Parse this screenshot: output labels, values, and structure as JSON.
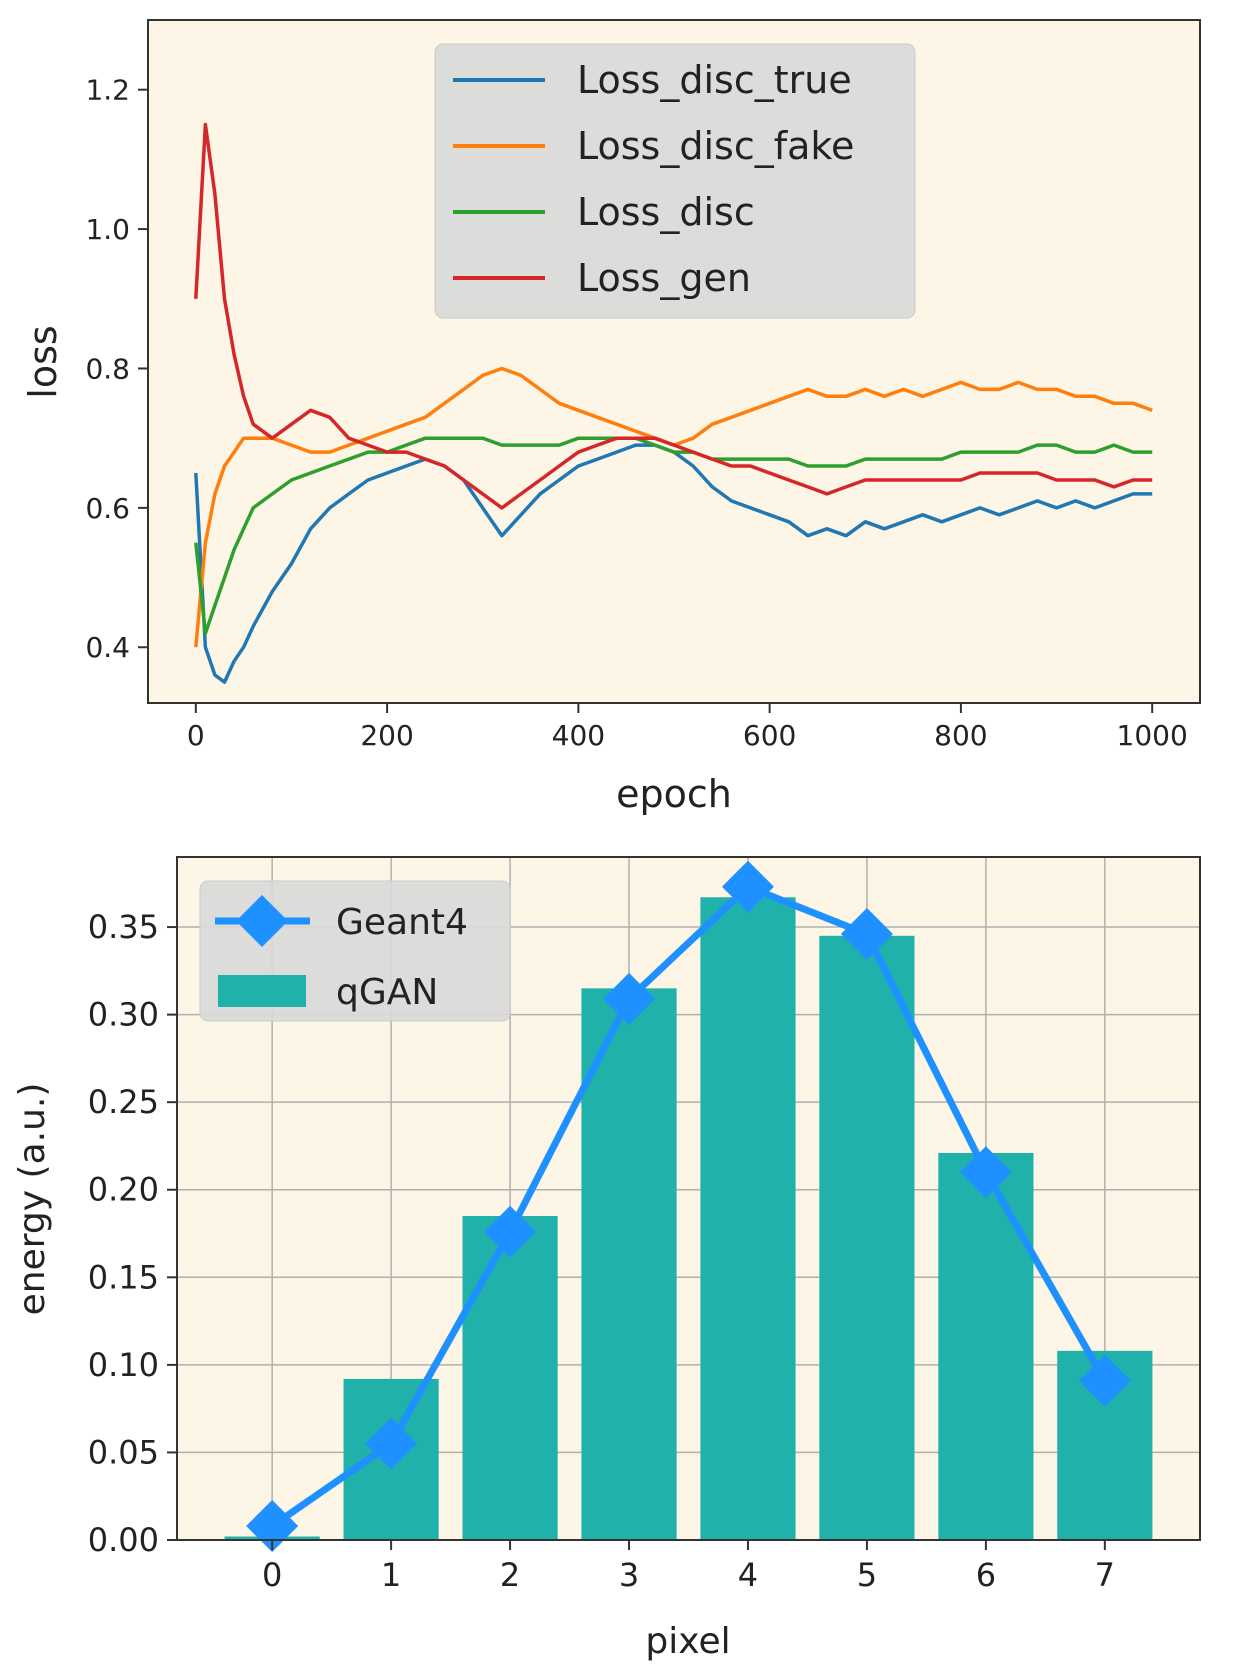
{
  "chart_data": [
    {
      "type": "line",
      "title": "",
      "xlabel": "epoch",
      "ylabel": "loss",
      "xlim": [
        -50,
        1050
      ],
      "ylim": [
        0.32,
        1.3
      ],
      "xticks": [
        0,
        200,
        400,
        600,
        800,
        1000
      ],
      "yticks": [
        0.4,
        0.6,
        0.8,
        1.0,
        1.2
      ],
      "xtick_labels": [
        "0",
        "200",
        "400",
        "600",
        "800",
        "1000"
      ],
      "ytick_labels": [
        "0.4",
        "0.6",
        "0.8",
        "1.0",
        "1.2"
      ],
      "grid": false,
      "legend_position": "upper-center",
      "background": "#fdf5e6",
      "series": [
        {
          "name": "Loss_disc_true",
          "color": "#1f77b4",
          "x": [
            0,
            10,
            20,
            30,
            40,
            50,
            60,
            80,
            100,
            120,
            140,
            160,
            180,
            200,
            220,
            240,
            260,
            280,
            300,
            320,
            340,
            360,
            380,
            400,
            420,
            440,
            460,
            480,
            500,
            520,
            540,
            560,
            580,
            600,
            620,
            640,
            660,
            680,
            700,
            720,
            740,
            760,
            780,
            800,
            820,
            840,
            860,
            880,
            900,
            920,
            940,
            960,
            980,
            1000
          ],
          "values": [
            0.65,
            0.4,
            0.36,
            0.35,
            0.38,
            0.4,
            0.43,
            0.48,
            0.52,
            0.57,
            0.6,
            0.62,
            0.64,
            0.65,
            0.66,
            0.67,
            0.66,
            0.64,
            0.6,
            0.56,
            0.59,
            0.62,
            0.64,
            0.66,
            0.67,
            0.68,
            0.69,
            0.69,
            0.68,
            0.66,
            0.63,
            0.61,
            0.6,
            0.59,
            0.58,
            0.56,
            0.57,
            0.56,
            0.58,
            0.57,
            0.58,
            0.59,
            0.58,
            0.59,
            0.6,
            0.59,
            0.6,
            0.61,
            0.6,
            0.61,
            0.6,
            0.61,
            0.62,
            0.62
          ]
        },
        {
          "name": "Loss_disc_fake",
          "color": "#ff7f0e",
          "x": [
            0,
            10,
            20,
            30,
            40,
            50,
            60,
            80,
            100,
            120,
            140,
            160,
            180,
            200,
            220,
            240,
            260,
            280,
            300,
            320,
            340,
            360,
            380,
            400,
            420,
            440,
            460,
            480,
            500,
            520,
            540,
            560,
            580,
            600,
            620,
            640,
            660,
            680,
            700,
            720,
            740,
            760,
            780,
            800,
            820,
            840,
            860,
            880,
            900,
            920,
            940,
            960,
            980,
            1000
          ],
          "values": [
            0.4,
            0.55,
            0.62,
            0.66,
            0.68,
            0.7,
            0.7,
            0.7,
            0.69,
            0.68,
            0.68,
            0.69,
            0.7,
            0.71,
            0.72,
            0.73,
            0.75,
            0.77,
            0.79,
            0.8,
            0.79,
            0.77,
            0.75,
            0.74,
            0.73,
            0.72,
            0.71,
            0.7,
            0.69,
            0.7,
            0.72,
            0.73,
            0.74,
            0.75,
            0.76,
            0.77,
            0.76,
            0.76,
            0.77,
            0.76,
            0.77,
            0.76,
            0.77,
            0.78,
            0.77,
            0.77,
            0.78,
            0.77,
            0.77,
            0.76,
            0.76,
            0.75,
            0.75,
            0.74
          ]
        },
        {
          "name": "Loss_disc",
          "color": "#2ca02c",
          "x": [
            0,
            10,
            20,
            30,
            40,
            50,
            60,
            80,
            100,
            120,
            140,
            160,
            180,
            200,
            220,
            240,
            260,
            280,
            300,
            320,
            340,
            360,
            380,
            400,
            420,
            440,
            460,
            480,
            500,
            520,
            540,
            560,
            580,
            600,
            620,
            640,
            660,
            680,
            700,
            720,
            740,
            760,
            780,
            800,
            820,
            840,
            860,
            880,
            900,
            920,
            940,
            960,
            980,
            1000
          ],
          "values": [
            0.55,
            0.42,
            0.46,
            0.5,
            0.54,
            0.57,
            0.6,
            0.62,
            0.64,
            0.65,
            0.66,
            0.67,
            0.68,
            0.68,
            0.69,
            0.7,
            0.7,
            0.7,
            0.7,
            0.69,
            0.69,
            0.69,
            0.69,
            0.7,
            0.7,
            0.7,
            0.7,
            0.69,
            0.68,
            0.68,
            0.67,
            0.67,
            0.67,
            0.67,
            0.67,
            0.66,
            0.66,
            0.66,
            0.67,
            0.67,
            0.67,
            0.67,
            0.67,
            0.68,
            0.68,
            0.68,
            0.68,
            0.69,
            0.69,
            0.68,
            0.68,
            0.69,
            0.68,
            0.68
          ]
        },
        {
          "name": "Loss_gen",
          "color": "#d62728",
          "x": [
            0,
            10,
            20,
            30,
            40,
            50,
            60,
            80,
            100,
            120,
            140,
            160,
            180,
            200,
            220,
            240,
            260,
            280,
            300,
            320,
            340,
            360,
            380,
            400,
            420,
            440,
            460,
            480,
            500,
            520,
            540,
            560,
            580,
            600,
            620,
            640,
            660,
            680,
            700,
            720,
            740,
            760,
            780,
            800,
            820,
            840,
            860,
            880,
            900,
            920,
            940,
            960,
            980,
            1000
          ],
          "values": [
            0.9,
            1.15,
            1.05,
            0.9,
            0.82,
            0.76,
            0.72,
            0.7,
            0.72,
            0.74,
            0.73,
            0.7,
            0.69,
            0.68,
            0.68,
            0.67,
            0.66,
            0.64,
            0.62,
            0.6,
            0.62,
            0.64,
            0.66,
            0.68,
            0.69,
            0.7,
            0.7,
            0.7,
            0.69,
            0.68,
            0.67,
            0.66,
            0.66,
            0.65,
            0.64,
            0.63,
            0.62,
            0.63,
            0.64,
            0.64,
            0.64,
            0.64,
            0.64,
            0.64,
            0.65,
            0.65,
            0.65,
            0.65,
            0.64,
            0.64,
            0.64,
            0.63,
            0.64,
            0.64
          ]
        }
      ]
    },
    {
      "type": "bar",
      "title": "",
      "xlabel": "pixel",
      "ylabel": "energy (a.u.)",
      "categories": [
        0,
        1,
        2,
        3,
        4,
        5,
        6,
        7
      ],
      "xtick_labels": [
        "0",
        "1",
        "2",
        "3",
        "4",
        "5",
        "6",
        "7"
      ],
      "xlim": [
        -0.8,
        7.8
      ],
      "ylim": [
        0,
        0.39
      ],
      "yticks": [
        0.0,
        0.05,
        0.1,
        0.15,
        0.2,
        0.25,
        0.3,
        0.35
      ],
      "ytick_labels": [
        "0.00",
        "0.05",
        "0.10",
        "0.15",
        "0.20",
        "0.25",
        "0.30",
        "0.35"
      ],
      "grid": true,
      "legend_position": "upper-left",
      "background": "#fdf5e6",
      "series": [
        {
          "name": "qGAN",
          "kind": "bar",
          "color": "#20b2aa",
          "values": [
            0.002,
            0.092,
            0.185,
            0.315,
            0.367,
            0.345,
            0.221,
            0.108
          ]
        },
        {
          "name": "Geant4",
          "kind": "line-marker",
          "marker": "diamond",
          "color": "#1e90ff",
          "values": [
            0.008,
            0.055,
            0.176,
            0.309,
            0.373,
            0.346,
            0.21,
            0.091
          ]
        }
      ]
    }
  ]
}
